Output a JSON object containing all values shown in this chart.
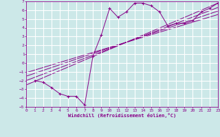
{
  "xlabel": "Windchill (Refroidissement éolien,°C)",
  "background_color": "#cce8e8",
  "line_color": "#880088",
  "grid_color": "#ffffff",
  "xlim": [
    0,
    23
  ],
  "ylim": [
    -5,
    7
  ],
  "xticks": [
    0,
    1,
    2,
    3,
    4,
    5,
    6,
    7,
    8,
    9,
    10,
    11,
    12,
    13,
    14,
    15,
    16,
    17,
    18,
    19,
    20,
    21,
    22,
    23
  ],
  "yticks": [
    -5,
    -4,
    -3,
    -2,
    -1,
    0,
    1,
    2,
    3,
    4,
    5,
    6,
    7
  ],
  "scatter_x": [
    1,
    2,
    3,
    4,
    5,
    6,
    7,
    8,
    9,
    10,
    11,
    12,
    13,
    14,
    15,
    16,
    17,
    18,
    19,
    20,
    21,
    22,
    23
  ],
  "scatter_y": [
    -2.0,
    -2.2,
    -2.8,
    -3.5,
    -3.8,
    -3.8,
    -4.8,
    0.8,
    3.2,
    6.2,
    5.2,
    5.8,
    6.8,
    6.8,
    6.5,
    5.8,
    4.2,
    4.5,
    4.5,
    4.8,
    5.8,
    6.2,
    6.8
  ],
  "line1_x": [
    0,
    23
  ],
  "line1_y": [
    -2.5,
    6.8
  ],
  "line2_x": [
    0,
    23
  ],
  "line2_y": [
    -2.0,
    6.3
  ],
  "line3_x": [
    0,
    23
  ],
  "line3_y": [
    -1.5,
    5.9
  ],
  "line4_x": [
    0,
    23
  ],
  "line4_y": [
    -1.1,
    5.5
  ]
}
